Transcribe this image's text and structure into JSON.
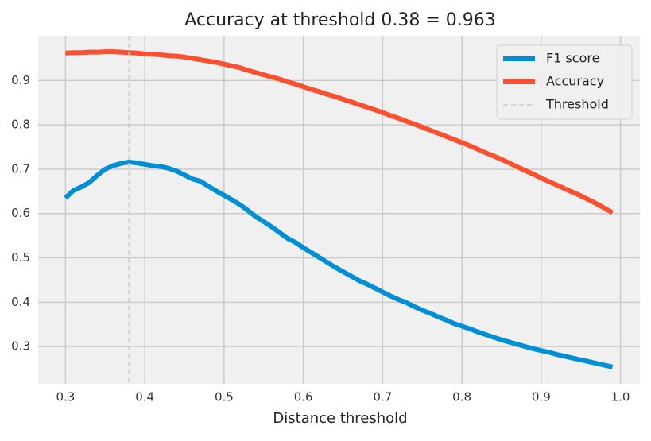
{
  "chart_data": {
    "type": "line",
    "title": "Accuracy at threshold 0.38 = 0.963",
    "xlabel": "Distance threshold",
    "x": [
      0.3,
      0.31,
      0.32,
      0.33,
      0.34,
      0.35,
      0.36,
      0.37,
      0.38,
      0.39,
      0.4,
      0.41,
      0.42,
      0.43,
      0.44,
      0.45,
      0.46,
      0.47,
      0.48,
      0.49,
      0.5,
      0.51,
      0.52,
      0.53,
      0.54,
      0.55,
      0.56,
      0.57,
      0.58,
      0.59,
      0.6,
      0.61,
      0.62,
      0.63,
      0.64,
      0.65,
      0.66,
      0.67,
      0.68,
      0.69,
      0.7,
      0.71,
      0.72,
      0.73,
      0.74,
      0.75,
      0.76,
      0.77,
      0.78,
      0.79,
      0.8,
      0.81,
      0.82,
      0.83,
      0.84,
      0.85,
      0.86,
      0.87,
      0.88,
      0.89,
      0.9,
      0.91,
      0.92,
      0.93,
      0.94,
      0.95,
      0.96,
      0.97,
      0.98,
      0.99
    ],
    "series": [
      {
        "name": "F1 score",
        "color": "#008fd5",
        "values": [
          0.635,
          0.652,
          0.66,
          0.67,
          0.686,
          0.7,
          0.708,
          0.713,
          0.716,
          0.714,
          0.711,
          0.708,
          0.706,
          0.702,
          0.696,
          0.687,
          0.678,
          0.673,
          0.662,
          0.651,
          0.641,
          0.631,
          0.62,
          0.607,
          0.593,
          0.582,
          0.57,
          0.557,
          0.544,
          0.535,
          0.523,
          0.512,
          0.501,
          0.49,
          0.479,
          0.469,
          0.459,
          0.449,
          0.441,
          0.432,
          0.423,
          0.414,
          0.406,
          0.399,
          0.39,
          0.382,
          0.375,
          0.367,
          0.36,
          0.352,
          0.346,
          0.34,
          0.333,
          0.327,
          0.321,
          0.315,
          0.31,
          0.305,
          0.3,
          0.295,
          0.291,
          0.287,
          0.282,
          0.278,
          0.274,
          0.27,
          0.266,
          0.262,
          0.258,
          0.254
        ]
      },
      {
        "name": "Accuracy",
        "color": "#fc4f30",
        "values": [
          0.962,
          0.963,
          0.963,
          0.964,
          0.964,
          0.965,
          0.965,
          0.964,
          0.963,
          0.962,
          0.96,
          0.959,
          0.958,
          0.956,
          0.955,
          0.953,
          0.95,
          0.947,
          0.944,
          0.941,
          0.937,
          0.933,
          0.929,
          0.923,
          0.918,
          0.913,
          0.908,
          0.903,
          0.897,
          0.892,
          0.886,
          0.88,
          0.875,
          0.869,
          0.864,
          0.858,
          0.852,
          0.846,
          0.84,
          0.834,
          0.828,
          0.821,
          0.815,
          0.808,
          0.802,
          0.795,
          0.788,
          0.781,
          0.774,
          0.767,
          0.76,
          0.753,
          0.745,
          0.737,
          0.73,
          0.722,
          0.714,
          0.705,
          0.697,
          0.689,
          0.68,
          0.672,
          0.664,
          0.656,
          0.648,
          0.64,
          0.631,
          0.622,
          0.612,
          0.602
        ]
      }
    ],
    "threshold_line": {
      "name": "Threshold",
      "x": 0.38,
      "color": "#cccccc"
    },
    "xlim": [
      0.2655,
      1.0245
    ],
    "ylim": [
      0.216,
      1.001
    ],
    "xticks": [
      0.3,
      0.4,
      0.5,
      0.6,
      0.7,
      0.8,
      0.9,
      {
        "value": 1.0,
        "label": "1.0"
      }
    ],
    "yticks": [
      0.3,
      0.4,
      0.5,
      0.6,
      0.7,
      0.8,
      0.9
    ],
    "grid": true,
    "legend": "upper right"
  }
}
